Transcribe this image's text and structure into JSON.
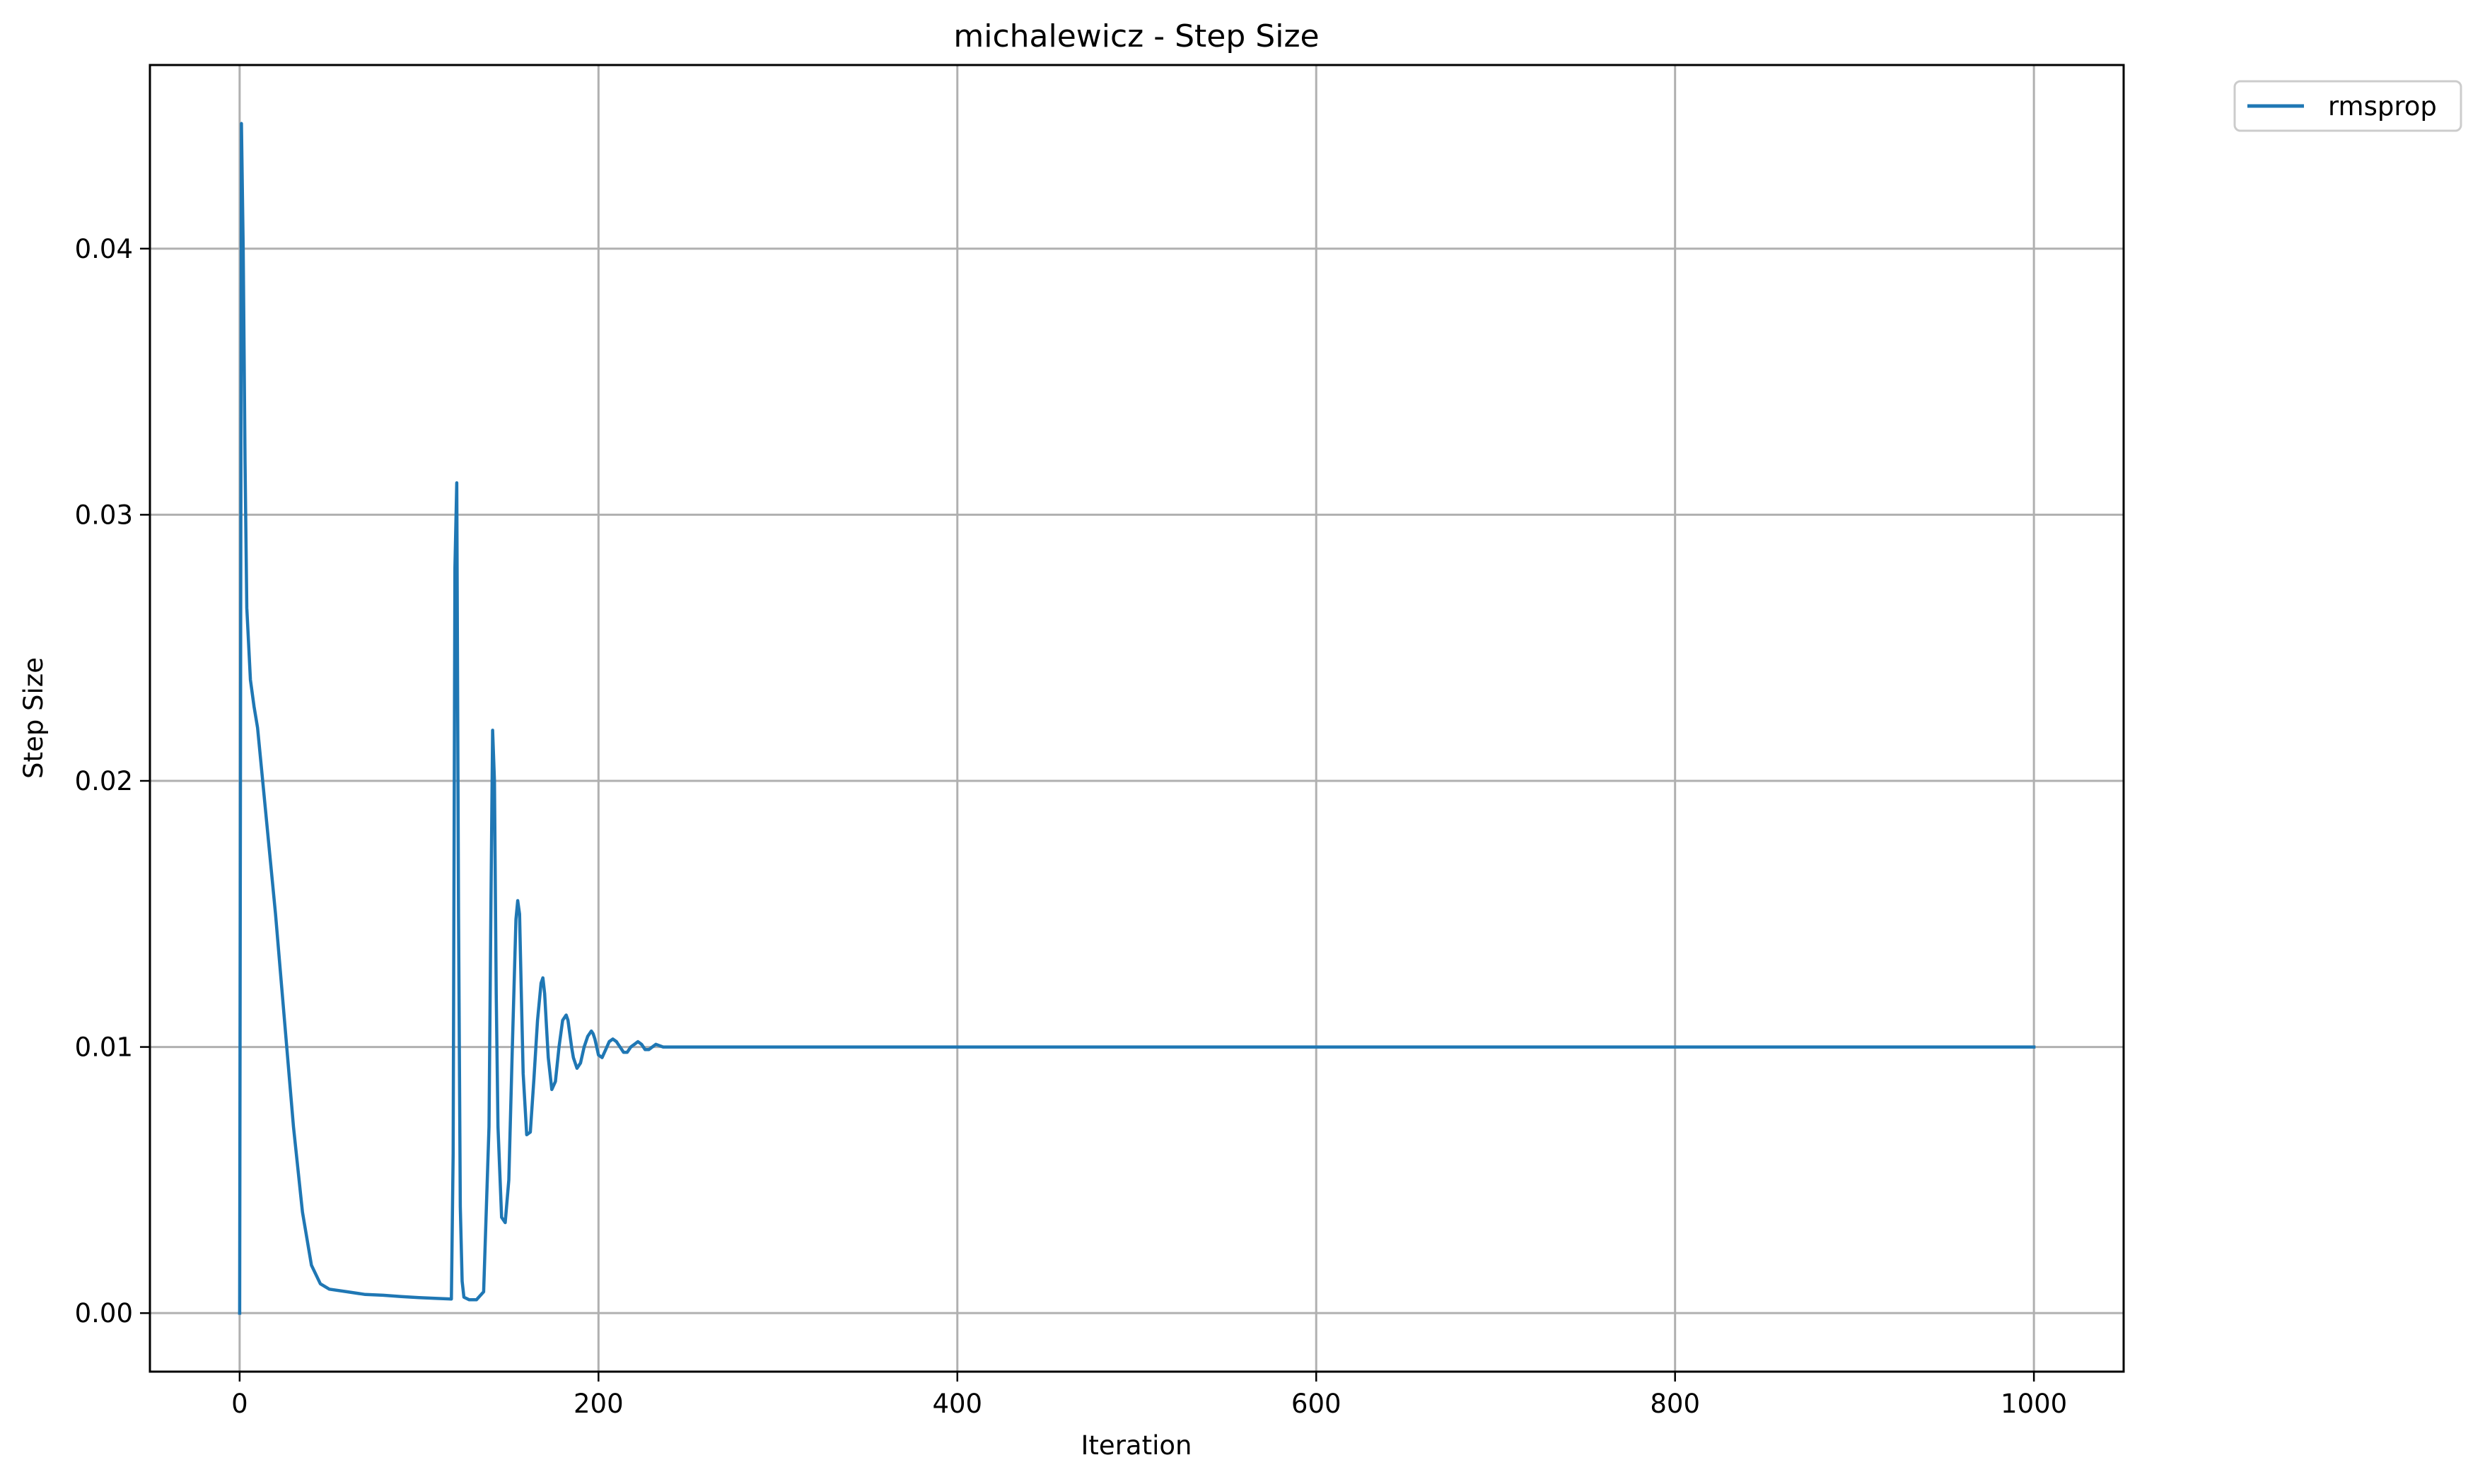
{
  "chart_data": {
    "type": "line",
    "title": "michalewicz - Step Size",
    "xlabel": "Iteration",
    "ylabel": "Step Size",
    "xlim": [
      -50,
      1050
    ],
    "ylim": [
      -0.0022,
      0.0469
    ],
    "xticks": [
      0,
      200,
      400,
      600,
      800,
      1000
    ],
    "xtick_labels": [
      "0",
      "200",
      "400",
      "600",
      "800",
      "1000"
    ],
    "yticks": [
      0.0,
      0.01,
      0.02,
      0.03,
      0.04
    ],
    "ytick_labels": [
      "0.00",
      "0.01",
      "0.02",
      "0.03",
      "0.04"
    ],
    "grid": true,
    "legend_position": "outside-top-right",
    "series": [
      {
        "name": "rmsprop",
        "color": "#1f77b4",
        "x": [
          0,
          1,
          2,
          3,
          4,
          6,
          8,
          10,
          15,
          20,
          25,
          30,
          35,
          40,
          45,
          50,
          60,
          70,
          80,
          90,
          100,
          110,
          118,
          119,
          120,
          121,
          122,
          123,
          124,
          125,
          128,
          132,
          136,
          139,
          140,
          141,
          142,
          143,
          144,
          146,
          148,
          150,
          152,
          154,
          155,
          156,
          157,
          158,
          160,
          162,
          164,
          166,
          168,
          169,
          170,
          171,
          172,
          174,
          176,
          178,
          180,
          182,
          183,
          184,
          185,
          186,
          188,
          190,
          192,
          194,
          196,
          197,
          198,
          199,
          200,
          202,
          204,
          206,
          208,
          210,
          211,
          212,
          214,
          216,
          218,
          220,
          222,
          224,
          226,
          228,
          230,
          232,
          236,
          240,
          244,
          248,
          252,
          256,
          260,
          264,
          268,
          272,
          276,
          280,
          290,
          300,
          400,
          500,
          600,
          700,
          800,
          900,
          1000
        ],
        "y": [
          0.0,
          0.0447,
          0.04,
          0.032,
          0.0265,
          0.0238,
          0.0228,
          0.022,
          0.0185,
          0.015,
          0.011,
          0.007,
          0.0038,
          0.0018,
          0.0011,
          0.0009,
          0.0008,
          0.0007,
          0.00067,
          0.00062,
          0.00058,
          0.00055,
          0.00053,
          0.006,
          0.028,
          0.0312,
          0.015,
          0.004,
          0.0012,
          0.0006,
          0.0005,
          0.0005,
          0.0008,
          0.007,
          0.015,
          0.0219,
          0.02,
          0.012,
          0.007,
          0.0036,
          0.0034,
          0.005,
          0.01,
          0.0148,
          0.0155,
          0.015,
          0.012,
          0.009,
          0.0067,
          0.0068,
          0.0088,
          0.011,
          0.0124,
          0.0126,
          0.012,
          0.0108,
          0.0096,
          0.0084,
          0.0087,
          0.01,
          0.011,
          0.0112,
          0.011,
          0.0105,
          0.01,
          0.0096,
          0.0092,
          0.0094,
          0.01,
          0.0104,
          0.0106,
          0.0105,
          0.0103,
          0.01,
          0.0097,
          0.0096,
          0.0099,
          0.0102,
          0.0103,
          0.0102,
          0.0101,
          0.01,
          0.0098,
          0.0098,
          0.01,
          0.0101,
          0.0102,
          0.0101,
          0.0099,
          0.0099,
          0.01,
          0.0101,
          0.01,
          0.01,
          0.01,
          0.01,
          0.01,
          0.01,
          0.01,
          0.01,
          0.01,
          0.01,
          0.01,
          0.01,
          0.01,
          0.01,
          0.01,
          0.01,
          0.01,
          0.01,
          0.01,
          0.01,
          0.01
        ]
      }
    ]
  }
}
